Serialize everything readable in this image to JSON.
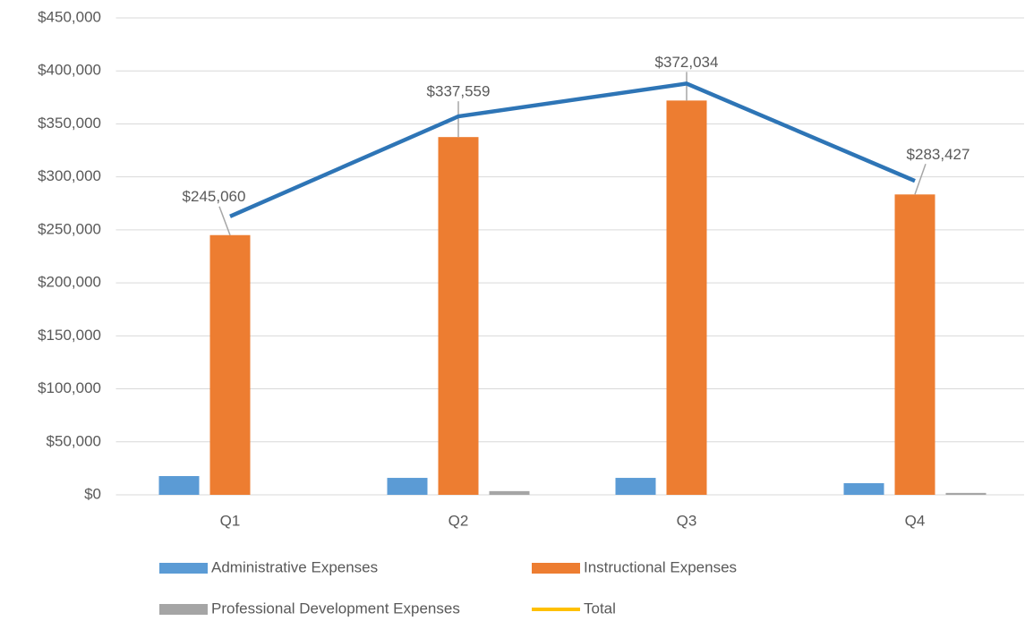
{
  "chart_data": {
    "type": "bar",
    "categories": [
      "Q1",
      "Q2",
      "Q3",
      "Q4"
    ],
    "series": [
      {
        "name": "Administrative Expenses",
        "color": "#5b9bd5",
        "values": [
          17700,
          16000,
          16000,
          11000
        ]
      },
      {
        "name": "Instructional Expenses",
        "color": "#ed7d31",
        "values": [
          245060,
          337559,
          372034,
          283427
        ],
        "value_labels": [
          "$245,060",
          "$337,559",
          "$372,034",
          "$283,427"
        ]
      },
      {
        "name": "Professional Development Expenses",
        "color": "#a5a5a5",
        "values": [
          0,
          3500,
          0,
          1800
        ]
      },
      {
        "name": "Total",
        "type": "line",
        "color": "#2e75b6",
        "legend_color": "#ffc000",
        "values": [
          262760,
          357059,
          388034,
          296227
        ]
      }
    ],
    "ylim": [
      0,
      450000
    ],
    "yticks": [
      {
        "value": 0,
        "label": "$0"
      },
      {
        "value": 50000,
        "label": "$50,000"
      },
      {
        "value": 100000,
        "label": "$100,000"
      },
      {
        "value": 150000,
        "label": "$150,000"
      },
      {
        "value": 200000,
        "label": "$200,000"
      },
      {
        "value": 250000,
        "label": "$250,000"
      },
      {
        "value": 300000,
        "label": "$300,000"
      },
      {
        "value": 350000,
        "label": "$350,000"
      },
      {
        "value": 400000,
        "label": "$400,000"
      },
      {
        "value": 450000,
        "label": "$450,000"
      }
    ],
    "grid": true
  }
}
